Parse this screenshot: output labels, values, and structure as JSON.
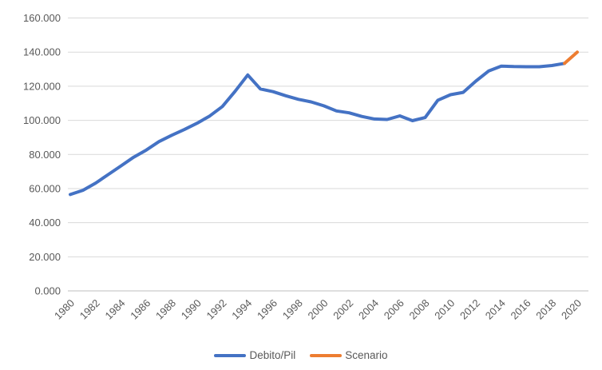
{
  "chart_data": {
    "type": "line",
    "title": "",
    "xlabel": "",
    "ylabel": "",
    "xlim": [
      1980,
      2020
    ],
    "ylim": [
      0,
      160
    ],
    "grid": "horizontal",
    "legend_position": "bottom",
    "ytick_values": [
      0,
      20,
      40,
      60,
      80,
      100,
      120,
      140,
      160
    ],
    "ytick_labels": [
      "0.000",
      "20.000",
      "40.000",
      "60.000",
      "80.000",
      "100.000",
      "120.000",
      "140.000",
      "160.000"
    ],
    "xtick_years": [
      1980,
      1982,
      1984,
      1986,
      1988,
      1990,
      1992,
      1994,
      1996,
      1998,
      2000,
      2002,
      2004,
      2006,
      2008,
      2010,
      2012,
      2014,
      2016,
      2018,
      2020
    ],
    "xtick_labels": [
      "1980",
      "1982",
      "1984",
      "1986",
      "1988",
      "1990",
      "1992",
      "1994",
      "1996",
      "1998",
      "2000",
      "2002",
      "2004",
      "2006",
      "2008",
      "2010",
      "2012",
      "2014",
      "2016",
      "2018",
      "2020"
    ],
    "series": [
      {
        "name": "Debito/Pil",
        "color": "#4472C4",
        "x": [
          1980,
          1981,
          1982,
          1983,
          1984,
          1985,
          1986,
          1987,
          1988,
          1989,
          1990,
          1991,
          1992,
          1993,
          1994,
          1995,
          1996,
          1997,
          1998,
          1999,
          2000,
          2001,
          2002,
          2003,
          2004,
          2005,
          2006,
          2007,
          2008,
          2009,
          2010,
          2011,
          2012,
          2013,
          2014,
          2015,
          2016,
          2017,
          2018,
          2019
        ],
        "values": [
          56.5,
          59.0,
          63.2,
          68.2,
          73.3,
          78.4,
          82.6,
          87.5,
          91.2,
          94.6,
          98.3,
          102.5,
          108.1,
          117.0,
          126.6,
          118.4,
          116.8,
          114.4,
          112.3,
          110.8,
          108.5,
          105.5,
          104.4,
          102.3,
          100.8,
          100.5,
          102.6,
          99.8,
          101.6,
          111.8,
          115.0,
          116.4,
          123.0,
          128.9,
          131.8,
          131.5,
          131.4,
          131.4,
          132.1,
          133.4
        ]
      },
      {
        "name": "Scenario",
        "color": "#ED7D31",
        "x": [
          2019,
          2020
        ],
        "values": [
          133.4,
          140.0
        ]
      }
    ]
  },
  "colors": {
    "background": "#FFFFFF",
    "gridline": "#D9D9D9",
    "axis": "#BFBFBF",
    "tick_text": "#595959",
    "legend_text": "#595959"
  }
}
